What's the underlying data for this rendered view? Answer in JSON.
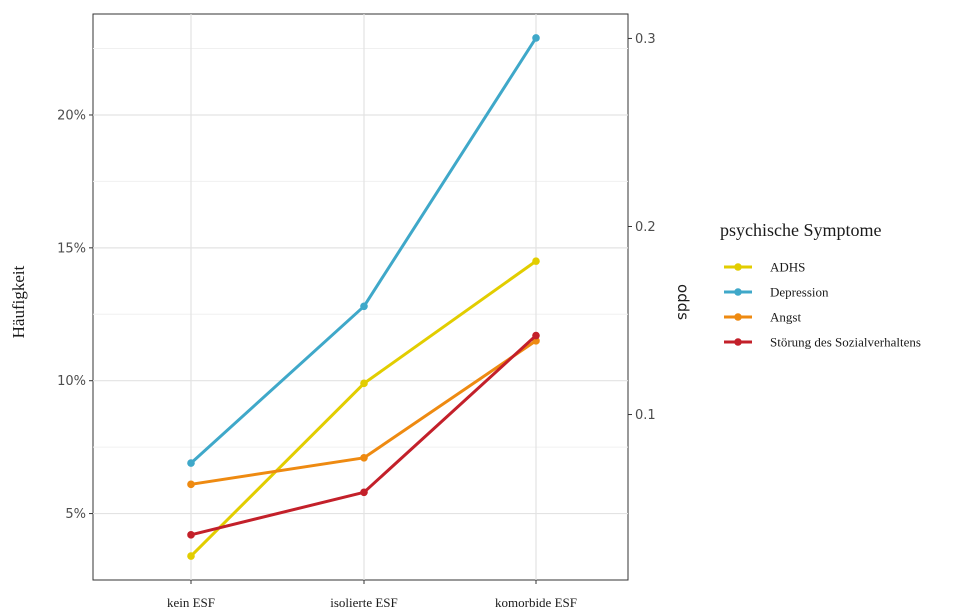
{
  "chart_data": {
    "type": "line",
    "categories": [
      "kein ESF",
      "isolierte ESF",
      "komorbide ESF"
    ],
    "ylabel": "Häufigkeit",
    "y2label": "odds",
    "ylim": [
      2.5,
      23.8
    ],
    "yticks": [
      "5%",
      "10%",
      "15%",
      "20%"
    ],
    "ytick_values": [
      5,
      10,
      15,
      20
    ],
    "y2lim": [
      0.012,
      0.313
    ],
    "y2ticks": [
      "0.1",
      "0.2",
      "0.3"
    ],
    "y2tick_values": [
      0.1,
      0.2,
      0.3
    ],
    "grid": true,
    "legend": {
      "title": "psychische Symptome",
      "position": "right"
    },
    "series": [
      {
        "name": "ADHS",
        "color": "#e2cd00",
        "values": [
          3.4,
          9.9,
          14.5
        ]
      },
      {
        "name": "Depression",
        "color": "#3fa8c9",
        "values": [
          6.9,
          12.8,
          22.9
        ]
      },
      {
        "name": "Angst",
        "color": "#ee8a11",
        "values": [
          6.1,
          7.1,
          11.5
        ]
      },
      {
        "name": "Störung des Sozialverhaltens",
        "color": "#c3202a",
        "values": [
          4.2,
          5.8,
          11.7
        ]
      }
    ]
  }
}
